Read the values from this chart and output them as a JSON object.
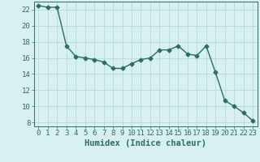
{
  "x": [
    0,
    1,
    2,
    3,
    4,
    5,
    6,
    7,
    8,
    9,
    10,
    11,
    12,
    13,
    14,
    15,
    16,
    17,
    18,
    19,
    20,
    21,
    22,
    23
  ],
  "y": [
    22.5,
    22.3,
    22.3,
    17.5,
    16.2,
    16.0,
    15.8,
    15.5,
    14.7,
    14.7,
    15.3,
    15.8,
    16.0,
    17.0,
    17.0,
    17.5,
    16.5,
    16.3,
    17.5,
    14.2,
    10.7,
    10.0,
    9.2,
    8.2
  ],
  "line_color": "#2a6e64",
  "marker": "D",
  "marker_size": 2.5,
  "bg_color": "#d9f0f0",
  "grid_color": "#b8dede",
  "xlabel": "Humidex (Indice chaleur)",
  "xlim": [
    -0.5,
    23.5
  ],
  "ylim": [
    7.5,
    23
  ],
  "yticks": [
    8,
    10,
    12,
    14,
    16,
    18,
    20,
    22
  ],
  "xticks": [
    0,
    1,
    2,
    3,
    4,
    5,
    6,
    7,
    8,
    9,
    10,
    11,
    12,
    13,
    14,
    15,
    16,
    17,
    18,
    19,
    20,
    21,
    22,
    23
  ],
  "tick_fontsize": 6.5,
  "xlabel_fontsize": 7.5
}
